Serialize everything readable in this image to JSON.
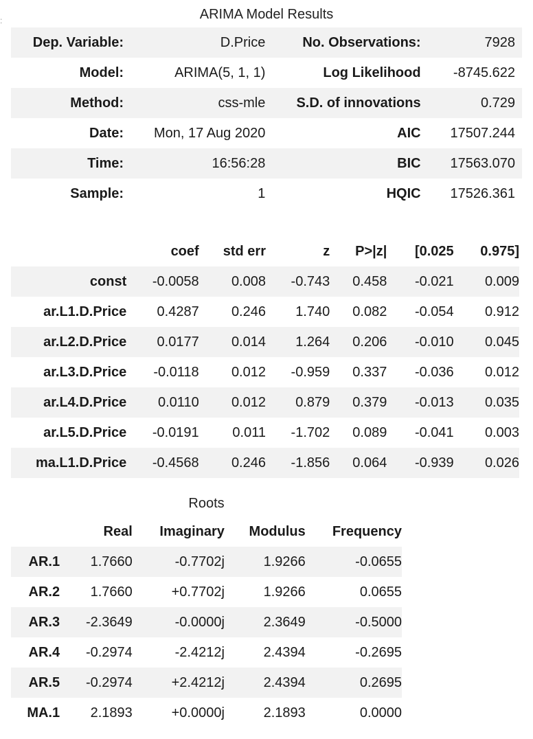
{
  "summary": {
    "title": "ARIMA Model Results",
    "rows": [
      {
        "l1": "Dep. Variable:",
        "v1": "D.Price",
        "l2": "No. Observations:",
        "v2": "7928"
      },
      {
        "l1": "Model:",
        "v1": "ARIMA(5, 1, 1)",
        "l2": "Log Likelihood",
        "v2": "-8745.622"
      },
      {
        "l1": "Method:",
        "v1": "css-mle",
        "l2": "S.D. of innovations",
        "v2": "0.729"
      },
      {
        "l1": "Date:",
        "v1": "Mon, 17 Aug 2020",
        "l2": "AIC",
        "v2": "17507.244"
      },
      {
        "l1": "Time:",
        "v1": "16:56:28",
        "l2": "BIC",
        "v2": "17563.070"
      },
      {
        "l1": "Sample:",
        "v1": "1",
        "l2": "HQIC",
        "v2": "17526.361"
      }
    ]
  },
  "coefficients": {
    "headers": [
      "",
      "coef",
      "std err",
      "z",
      "P>|z|",
      "[0.025",
      "0.975]"
    ],
    "rows": [
      [
        "const",
        "-0.0058",
        "0.008",
        "-0.743",
        "0.458",
        "-0.021",
        "0.009"
      ],
      [
        "ar.L1.D.Price",
        "0.4287",
        "0.246",
        "1.740",
        "0.082",
        "-0.054",
        "0.912"
      ],
      [
        "ar.L2.D.Price",
        "0.0177",
        "0.014",
        "1.264",
        "0.206",
        "-0.010",
        "0.045"
      ],
      [
        "ar.L3.D.Price",
        "-0.0118",
        "0.012",
        "-0.959",
        "0.337",
        "-0.036",
        "0.012"
      ],
      [
        "ar.L4.D.Price",
        "0.0110",
        "0.012",
        "0.879",
        "0.379",
        "-0.013",
        "0.035"
      ],
      [
        "ar.L5.D.Price",
        "-0.0191",
        "0.011",
        "-1.702",
        "0.089",
        "-0.041",
        "0.003"
      ],
      [
        "ma.L1.D.Price",
        "-0.4568",
        "0.246",
        "-1.856",
        "0.064",
        "-0.939",
        "0.026"
      ]
    ]
  },
  "roots": {
    "title": "Roots",
    "headers": [
      "",
      "Real",
      "Imaginary",
      "Modulus",
      "Frequency"
    ],
    "rows": [
      [
        "AR.1",
        "1.7660",
        "-0.7702j",
        "1.9266",
        "-0.0655"
      ],
      [
        "AR.2",
        "1.7660",
        "+0.7702j",
        "1.9266",
        "0.0655"
      ],
      [
        "AR.3",
        "-2.3649",
        "-0.0000j",
        "2.3649",
        "-0.5000"
      ],
      [
        "AR.4",
        "-0.2974",
        "-2.4212j",
        "2.4394",
        "-0.2695"
      ],
      [
        "AR.5",
        "-0.2974",
        "+2.4212j",
        "2.4394",
        "0.2695"
      ],
      [
        "MA.1",
        "2.1893",
        "+0.0000j",
        "2.1893",
        "0.0000"
      ]
    ]
  }
}
